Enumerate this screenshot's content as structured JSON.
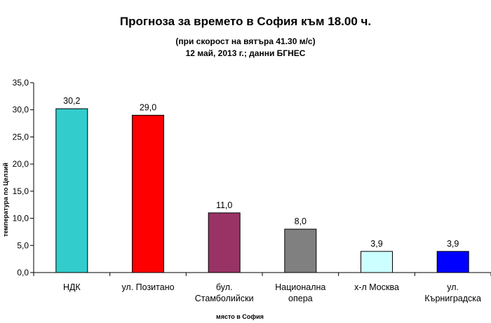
{
  "chart_data": {
    "type": "bar",
    "title": "Прогноза за времето в София към 18.00 ч.",
    "subtitle_1": "(при скорост на вятъра 41.30 м/с)",
    "subtitle_2": "12 май, 2013 г.; данни БГНЕС",
    "xlabel": "място в София",
    "ylabel": "температура по Целзий",
    "ylim": [
      0,
      35
    ],
    "yticks": [
      "0,0",
      "5,0",
      "10,0",
      "15,0",
      "20,0",
      "25,0",
      "30,0",
      "35,0"
    ],
    "grid": false,
    "legend": "none",
    "categories": [
      [
        "НДК"
      ],
      [
        "ул. Позитано"
      ],
      [
        "бул.",
        "Стамболийски"
      ],
      [
        "Национална",
        "опера"
      ],
      [
        "х-л Москва"
      ],
      [
        "ул.",
        "Кърниградска"
      ]
    ],
    "values": [
      30.2,
      29.0,
      11.0,
      8.0,
      3.9,
      3.9
    ],
    "data_labels": [
      "30,2",
      "29,0",
      "11,0",
      "8,0",
      "3,9",
      "3,9"
    ],
    "colors": [
      "#33cccc",
      "#ff0000",
      "#993366",
      "#808080",
      "#ccffff",
      "#0000ff"
    ]
  }
}
